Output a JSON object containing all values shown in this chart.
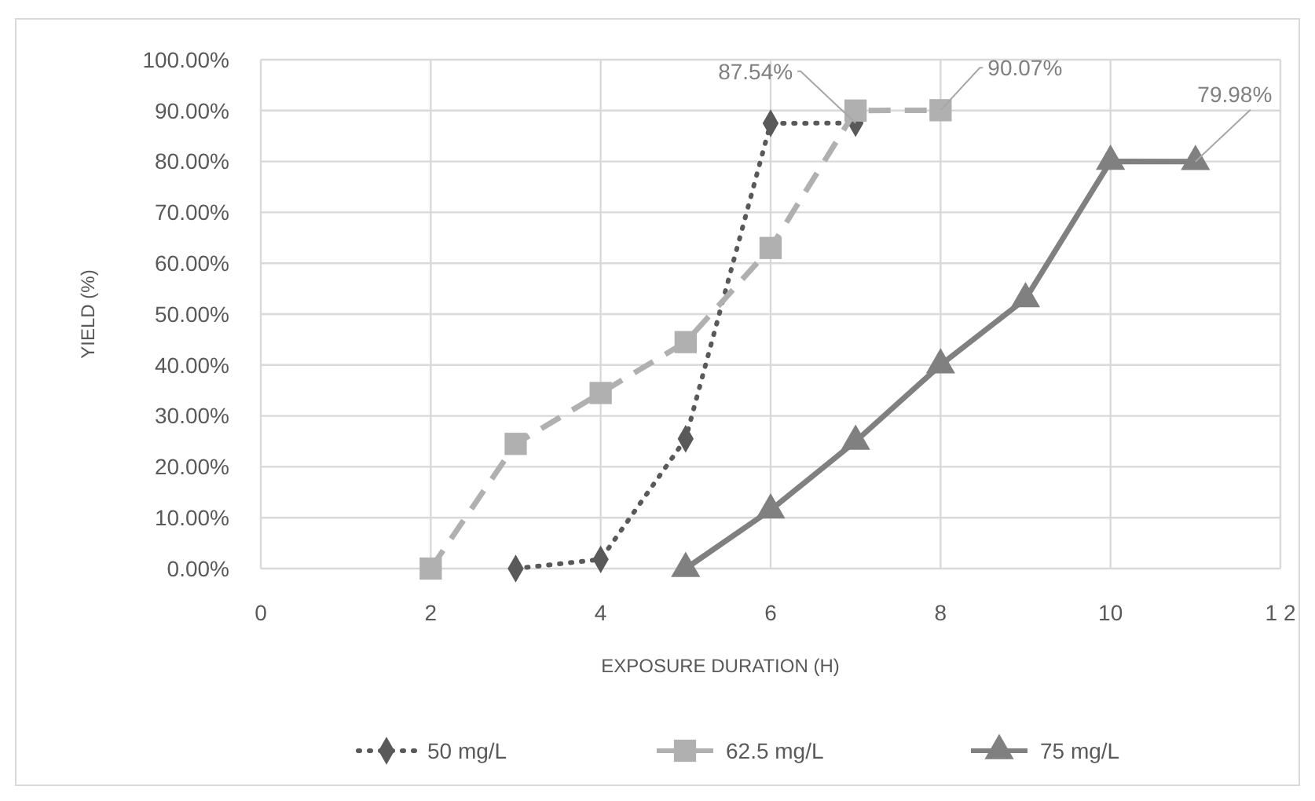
{
  "chart_data": {
    "type": "line",
    "xlabel": "EXPOSURE DURATION (H)",
    "ylabel": "YIELD (%)",
    "xlim": [
      0,
      12
    ],
    "xticks": [
      0,
      2,
      4,
      6,
      8,
      10,
      {
        "value": 12,
        "label": "1 2"
      }
    ],
    "ylim": [
      0,
      100
    ],
    "yticks": [
      {
        "value": 0,
        "label": "0.00%"
      },
      {
        "value": 10,
        "label": "10.00%"
      },
      {
        "value": 20,
        "label": "20.00%"
      },
      {
        "value": 30,
        "label": "30.00%"
      },
      {
        "value": 40,
        "label": "40.00%"
      },
      {
        "value": 50,
        "label": "50.00%"
      },
      {
        "value": 60,
        "label": "60.00%"
      },
      {
        "value": 70,
        "label": "70.00%"
      },
      {
        "value": 80,
        "label": "80.00%"
      },
      {
        "value": 90,
        "label": "90.00%"
      },
      {
        "value": 100,
        "label": "100.00%"
      }
    ],
    "grid": true,
    "legend": "bottom",
    "series": [
      {
        "name": "50 mg/L",
        "color": "#595959",
        "marker": "diamond",
        "line_style": "dotted",
        "x": [
          3,
          4,
          5,
          6,
          7
        ],
        "values": [
          0,
          1.8,
          25.5,
          87.5,
          87.54
        ]
      },
      {
        "name": "62.5 mg/L",
        "color": "#b0b0b0",
        "marker": "square",
        "line_style": "dashed",
        "x": [
          2,
          3,
          4,
          5,
          6,
          7,
          8
        ],
        "values": [
          0,
          24.5,
          34.5,
          44.5,
          63,
          90,
          90.07
        ]
      },
      {
        "name": "75 mg/L",
        "color": "#808080",
        "marker": "triangle",
        "line_style": "solid",
        "x": [
          5,
          6,
          7,
          8,
          9,
          10,
          11
        ],
        "values": [
          0,
          11.5,
          25,
          40,
          53,
          80,
          79.98
        ]
      }
    ],
    "annotations": [
      {
        "text": "87.54%",
        "x": 7,
        "y": 87.54
      },
      {
        "text": "90.07%",
        "x": 8,
        "y": 90.07
      },
      {
        "text": "79.98%",
        "x": 11,
        "y": 79.98
      }
    ]
  }
}
